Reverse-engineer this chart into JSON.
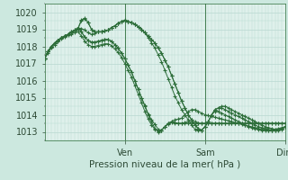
{
  "bg_color": "#cce8df",
  "plot_bg_color": "#dff0eb",
  "grid_color": "#b8d8d0",
  "line_color": "#2d6e3a",
  "marker": "+",
  "xlabel_text": "Pression niveau de la mer( hPa )",
  "ylim": [
    1012.5,
    1020.5
  ],
  "yticks": [
    1013,
    1014,
    1015,
    1016,
    1017,
    1018,
    1019,
    1020
  ],
  "day_labels": [
    "Ven",
    "Sam",
    "Dim"
  ],
  "day_positions": [
    0.333,
    0.667,
    1.0
  ],
  "total_hours": 72,
  "series": [
    [
      0,
      1017.3,
      1,
      1017.7,
      2,
      1018.0,
      3,
      1018.2,
      4,
      1018.35,
      5,
      1018.5,
      6,
      1018.6,
      7,
      1018.7,
      8,
      1018.82,
      9,
      1018.9,
      10,
      1019.0,
      11,
      1019.05,
      12,
      1018.95,
      13,
      1018.8,
      14,
      1018.7,
      15,
      1018.75,
      16,
      1018.85,
      17,
      1018.85,
      18,
      1018.9,
      19,
      1018.95,
      20,
      1019.1,
      21,
      1019.2,
      22,
      1019.35,
      23,
      1019.45,
      24,
      1019.5,
      25,
      1019.45,
      26,
      1019.4,
      27,
      1019.3,
      28,
      1019.15,
      29,
      1019.0,
      30,
      1018.8,
      31,
      1018.6,
      32,
      1018.4,
      33,
      1018.2,
      34,
      1017.9,
      35,
      1017.6,
      36,
      1017.2,
      37,
      1016.8,
      38,
      1016.3,
      39,
      1015.8,
      40,
      1015.3,
      41,
      1014.8,
      42,
      1014.4,
      43,
      1014.0,
      44,
      1013.7,
      45,
      1013.4,
      46,
      1013.2,
      47,
      1013.1,
      48,
      1013.3,
      49,
      1013.6,
      50,
      1014.0,
      51,
      1014.3,
      52,
      1014.4,
      53,
      1014.5,
      54,
      1014.5,
      55,
      1014.4,
      56,
      1014.3,
      57,
      1014.2,
      58,
      1014.1,
      59,
      1014.0,
      60,
      1013.9,
      61,
      1013.8,
      62,
      1013.7,
      63,
      1013.6,
      64,
      1013.5,
      65,
      1013.4,
      66,
      1013.3,
      67,
      1013.25,
      68,
      1013.2,
      69,
      1013.15,
      70,
      1013.15,
      71,
      1013.2,
      72,
      1013.3
    ],
    [
      0,
      1017.3,
      1,
      1017.7,
      2,
      1018.0,
      3,
      1018.2,
      4,
      1018.35,
      5,
      1018.5,
      6,
      1018.6,
      7,
      1018.7,
      8,
      1018.82,
      9,
      1018.9,
      10,
      1019.05,
      11,
      1019.5,
      12,
      1019.6,
      13,
      1019.4,
      14,
      1019.0,
      15,
      1018.85,
      16,
      1018.85,
      17,
      1018.85,
      18,
      1018.9,
      19,
      1018.95,
      20,
      1019.1,
      21,
      1019.2,
      22,
      1019.35,
      23,
      1019.45,
      24,
      1019.5,
      25,
      1019.45,
      26,
      1019.4,
      27,
      1019.3,
      28,
      1019.15,
      29,
      1019.0,
      30,
      1018.8,
      31,
      1018.6,
      32,
      1018.4,
      33,
      1018.2,
      34,
      1017.9,
      35,
      1017.6,
      36,
      1017.2,
      37,
      1016.8,
      38,
      1016.3,
      39,
      1015.8,
      40,
      1015.3,
      41,
      1014.8,
      42,
      1014.4,
      43,
      1014.0,
      44,
      1013.7,
      45,
      1013.4,
      46,
      1013.2,
      47,
      1013.1,
      48,
      1013.3,
      49,
      1013.6,
      50,
      1014.0,
      51,
      1014.3,
      52,
      1014.4,
      53,
      1014.4,
      54,
      1014.3,
      55,
      1014.2,
      56,
      1014.1,
      57,
      1014.0,
      58,
      1013.9,
      59,
      1013.8,
      60,
      1013.7,
      61,
      1013.6,
      62,
      1013.5,
      63,
      1013.4,
      64,
      1013.3,
      65,
      1013.25,
      66,
      1013.2,
      67,
      1013.15,
      68,
      1013.1,
      69,
      1013.15,
      70,
      1013.2,
      71,
      1013.25,
      72,
      1013.3
    ],
    [
      0,
      1017.3,
      1,
      1017.7,
      2,
      1018.0,
      3,
      1018.2,
      4,
      1018.35,
      5,
      1018.5,
      6,
      1018.6,
      7,
      1018.7,
      8,
      1018.82,
      9,
      1018.9,
      10,
      1019.05,
      11,
      1019.55,
      12,
      1019.65,
      13,
      1019.4,
      14,
      1019.0,
      15,
      1018.85,
      16,
      1018.85,
      17,
      1018.85,
      18,
      1018.9,
      19,
      1018.95,
      20,
      1019.1,
      21,
      1019.2,
      22,
      1019.35,
      23,
      1019.45,
      24,
      1019.55,
      25,
      1019.45,
      26,
      1019.4,
      27,
      1019.3,
      28,
      1019.15,
      29,
      1019.0,
      30,
      1018.8,
      31,
      1018.5,
      32,
      1018.2,
      33,
      1017.9,
      34,
      1017.5,
      35,
      1017.1,
      36,
      1016.6,
      37,
      1016.1,
      38,
      1015.6,
      39,
      1015.1,
      40,
      1014.7,
      41,
      1014.3,
      42,
      1014.0,
      43,
      1013.7,
      44,
      1013.4,
      45,
      1013.15,
      46,
      1013.1,
      47,
      1013.1,
      48,
      1013.3,
      49,
      1013.6,
      50,
      1014.0,
      51,
      1014.2,
      52,
      1014.2,
      53,
      1014.1,
      54,
      1014.0,
      55,
      1013.9,
      56,
      1013.8,
      57,
      1013.7,
      58,
      1013.6,
      59,
      1013.5,
      60,
      1013.4,
      61,
      1013.3,
      62,
      1013.25,
      63,
      1013.2,
      64,
      1013.15,
      65,
      1013.1,
      66,
      1013.1,
      67,
      1013.1,
      68,
      1013.1,
      69,
      1013.1,
      70,
      1013.15,
      71,
      1013.2,
      72,
      1013.3
    ],
    [
      0,
      1017.3,
      1,
      1017.7,
      2,
      1018.0,
      3,
      1018.2,
      4,
      1018.35,
      5,
      1018.5,
      6,
      1018.6,
      7,
      1018.7,
      8,
      1018.85,
      9,
      1018.95,
      10,
      1019.1,
      11,
      1018.85,
      12,
      1018.55,
      13,
      1018.35,
      14,
      1018.25,
      15,
      1018.25,
      16,
      1018.3,
      17,
      1018.35,
      18,
      1018.4,
      19,
      1018.4,
      20,
      1018.3,
      21,
      1018.1,
      22,
      1017.9,
      23,
      1017.6,
      24,
      1017.3,
      25,
      1016.9,
      26,
      1016.5,
      27,
      1016.0,
      28,
      1015.5,
      29,
      1015.0,
      30,
      1014.5,
      31,
      1014.0,
      32,
      1013.6,
      33,
      1013.2,
      34,
      1013.0,
      35,
      1013.1,
      36,
      1013.3,
      37,
      1013.5,
      38,
      1013.6,
      39,
      1013.7,
      40,
      1013.75,
      41,
      1013.8,
      42,
      1014.0,
      43,
      1014.2,
      44,
      1014.3,
      45,
      1014.3,
      46,
      1014.2,
      47,
      1014.1,
      48,
      1014.0,
      49,
      1013.95,
      50,
      1013.9,
      51,
      1013.85,
      52,
      1013.8,
      53,
      1013.75,
      54,
      1013.7,
      55,
      1013.65,
      56,
      1013.6,
      57,
      1013.55,
      58,
      1013.5,
      59,
      1013.45,
      60,
      1013.4,
      61,
      1013.35,
      62,
      1013.3,
      63,
      1013.25,
      64,
      1013.2,
      65,
      1013.15,
      66,
      1013.15,
      67,
      1013.1,
      68,
      1013.1,
      69,
      1013.1,
      70,
      1013.1,
      71,
      1013.15,
      72,
      1013.3
    ],
    [
      0,
      1017.3,
      1,
      1017.7,
      2,
      1018.0,
      3,
      1018.2,
      4,
      1018.35,
      5,
      1018.5,
      6,
      1018.6,
      7,
      1018.7,
      8,
      1018.85,
      9,
      1018.95,
      10,
      1019.1,
      11,
      1018.85,
      12,
      1018.55,
      13,
      1018.35,
      14,
      1018.25,
      15,
      1018.25,
      16,
      1018.3,
      17,
      1018.35,
      18,
      1018.4,
      19,
      1018.4,
      20,
      1018.3,
      21,
      1018.1,
      22,
      1017.9,
      23,
      1017.6,
      24,
      1017.3,
      25,
      1016.9,
      26,
      1016.5,
      27,
      1016.0,
      28,
      1015.5,
      29,
      1015.0,
      30,
      1014.55,
      31,
      1014.05,
      32,
      1013.7,
      33,
      1013.45,
      34,
      1013.15,
      35,
      1013.1,
      36,
      1013.3,
      37,
      1013.5,
      38,
      1013.6,
      39,
      1013.55,
      40,
      1013.5,
      41,
      1013.5,
      42,
      1013.55,
      43,
      1013.6,
      44,
      1013.6,
      45,
      1013.6,
      46,
      1013.5,
      47,
      1013.5,
      48,
      1013.5,
      49,
      1013.5,
      50,
      1013.5,
      51,
      1013.5,
      52,
      1013.5,
      53,
      1013.5,
      54,
      1013.5,
      55,
      1013.5,
      56,
      1013.5,
      57,
      1013.5,
      58,
      1013.5,
      59,
      1013.5,
      60,
      1013.5,
      61,
      1013.5,
      62,
      1013.5,
      63,
      1013.5,
      64,
      1013.5,
      65,
      1013.5,
      66,
      1013.5,
      67,
      1013.5,
      68,
      1013.5,
      69,
      1013.5,
      70,
      1013.5,
      71,
      1013.5,
      72,
      1013.5
    ],
    [
      0,
      1017.3,
      1,
      1017.6,
      2,
      1017.9,
      3,
      1018.1,
      4,
      1018.3,
      5,
      1018.45,
      6,
      1018.55,
      7,
      1018.65,
      8,
      1018.72,
      9,
      1018.8,
      10,
      1018.85,
      11,
      1018.6,
      12,
      1018.3,
      13,
      1018.1,
      14,
      1018.0,
      15,
      1018.0,
      16,
      1018.05,
      17,
      1018.1,
      18,
      1018.15,
      19,
      1018.15,
      20,
      1018.05,
      21,
      1017.85,
      22,
      1017.65,
      23,
      1017.35,
      24,
      1017.0,
      25,
      1016.6,
      26,
      1016.2,
      27,
      1015.7,
      28,
      1015.2,
      29,
      1014.7,
      30,
      1014.2,
      31,
      1013.75,
      32,
      1013.4,
      33,
      1013.15,
      34,
      1013.05,
      35,
      1013.1,
      36,
      1013.3,
      37,
      1013.45,
      38,
      1013.55,
      39,
      1013.5,
      40,
      1013.5,
      41,
      1013.5,
      42,
      1013.5,
      43,
      1013.5,
      44,
      1013.5,
      45,
      1013.5,
      46,
      1013.5,
      47,
      1013.5,
      48,
      1013.5,
      49,
      1013.5,
      50,
      1013.5,
      51,
      1013.5,
      52,
      1013.5,
      53,
      1013.5,
      54,
      1013.5,
      55,
      1013.5,
      56,
      1013.5,
      57,
      1013.5,
      58,
      1013.5,
      59,
      1013.5,
      60,
      1013.5,
      61,
      1013.5,
      62,
      1013.5,
      63,
      1013.5,
      64,
      1013.5,
      65,
      1013.5,
      66,
      1013.5,
      67,
      1013.5,
      68,
      1013.5,
      69,
      1013.5,
      70,
      1013.5,
      71,
      1013.5,
      72,
      1013.5
    ]
  ]
}
